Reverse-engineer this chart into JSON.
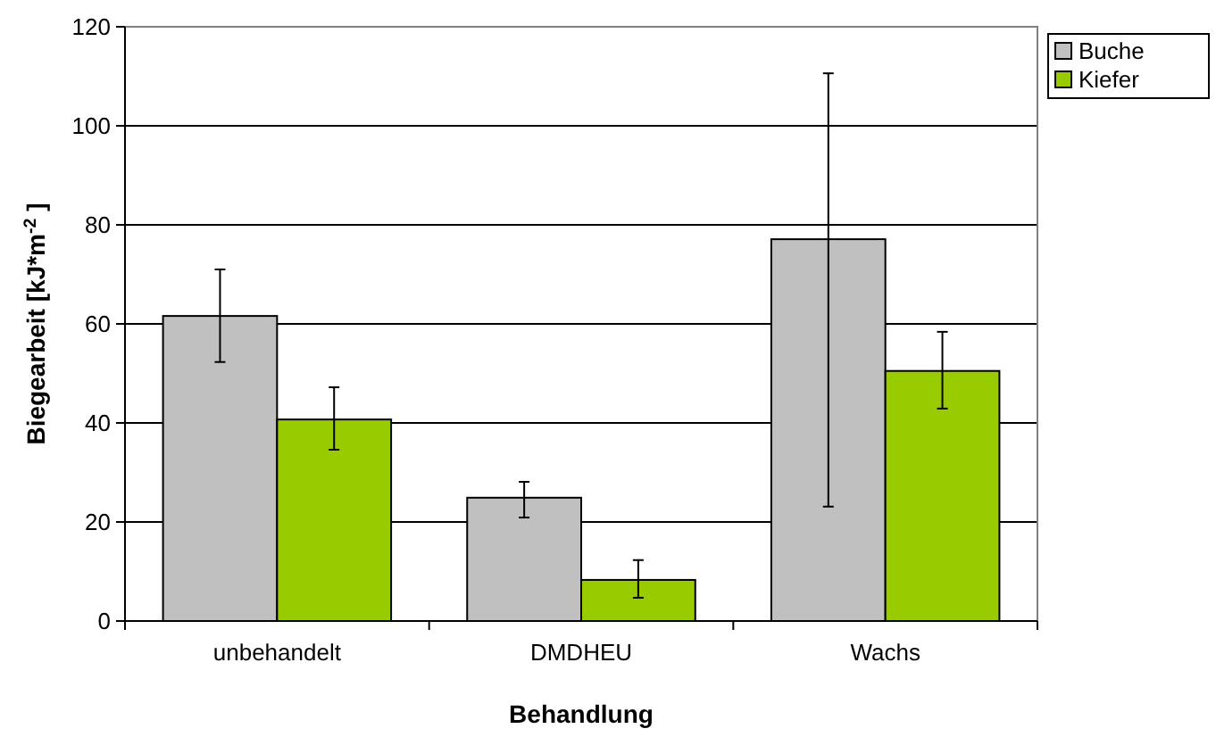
{
  "chart_data": {
    "type": "bar",
    "xlabel": "Behandlung",
    "ylabel": "Biegearbeit [kJ*m$^{-2}$]",
    "categories": [
      "unbehandelt",
      "DMDHEU",
      "Wachs"
    ],
    "series": [
      {
        "name": "Buche",
        "color": "#c0c0c0",
        "values": [
          61.6,
          24.9,
          77.1
        ],
        "errors": [
          [
            52.3,
            71
          ],
          [
            20.9,
            28.1
          ],
          [
            23.1,
            110.6
          ]
        ]
      },
      {
        "name": "Kiefer",
        "color": "#99cc00",
        "values": [
          40.7,
          8.3,
          50.5
        ],
        "errors": [
          [
            34.6,
            47.2
          ],
          [
            4.7,
            12.3
          ],
          [
            42.9,
            58.4
          ]
        ]
      }
    ],
    "ylim": [
      0,
      120
    ],
    "yticks": [
      0,
      20,
      40,
      60,
      80,
      100,
      120
    ],
    "grid": "y",
    "legend": "top right"
  }
}
